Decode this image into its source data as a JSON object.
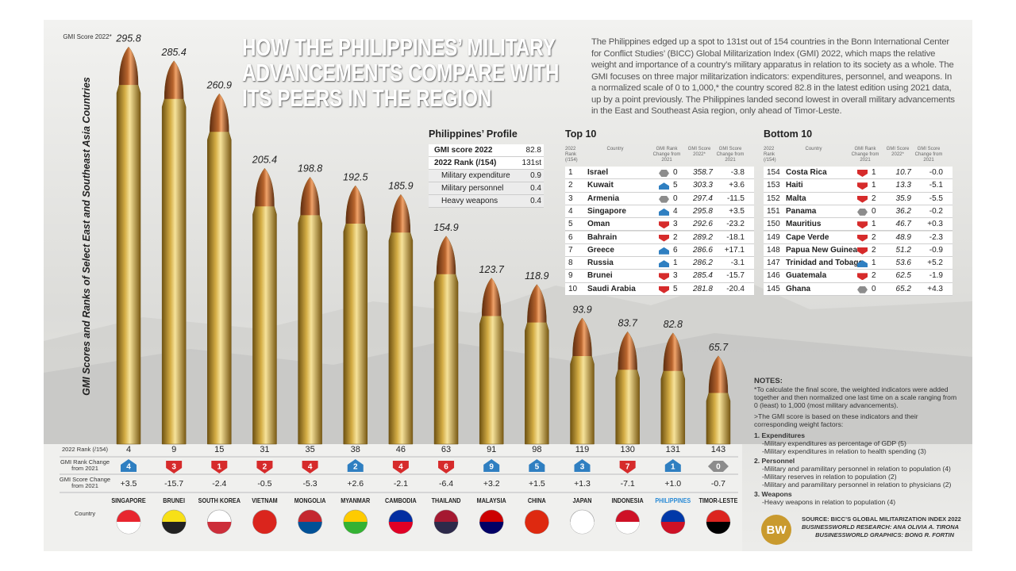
{
  "header": {
    "title": "HOW THE PHILIPPINES’ MILITARY ADVANCEMENTS COMPARE WITH ITS PEERS IN THE REGION",
    "intro": "The Philippines edged up a spot to 131st out of 154 countries in the Bonn International Center for Conflict Studies’ (BICC) Global Militarization Index (GMI) 2022, which maps the relative weight and importance of a country’s military apparatus in relation to its society as a whole. The GMI focuses on three major militarization indicators: expenditures, personnel, and weapons. In a normalized scale of 0 to 1,000,* the country scored 82.8 in the latest edition using 2021 data, up by a point previously. The Philippines landed second lowest in overall military advancements in the East and Southeast Asia region, only ahead of Timor-Leste."
  },
  "chart_data": {
    "type": "bar",
    "ylabel": "GMI Scores and Ranks of Select East and Southeast Asia Countries",
    "value_caption": "GMI Score 2022*",
    "row_labels": {
      "rank": "2022 Rank (/154)",
      "rank_change": "GMI Rank Change from 2021",
      "score_change": "GMI Score Change from 2021",
      "country": "Country"
    },
    "categories": [
      "SINGAPORE",
      "BRUNEI",
      "SOUTH KOREA",
      "VIETNAM",
      "MONGOLIA",
      "MYANMAR",
      "CAMBODIA",
      "THAILAND",
      "MALAYSIA",
      "CHINA",
      "JAPAN",
      "INDONESIA",
      "PHILIPPINES",
      "TIMOR-LESTE"
    ],
    "values": [
      295.8,
      285.4,
      260.9,
      205.4,
      198.8,
      192.5,
      185.9,
      154.9,
      123.7,
      118.9,
      93.9,
      83.7,
      82.8,
      65.7
    ],
    "ylim": [
      0,
      300
    ],
    "color": "#d4ad45",
    "tip_color": "#b8652e",
    "highlight_index": 12,
    "highlight_color": "#2a8bd6",
    "ranks": [
      4,
      9,
      15,
      31,
      35,
      38,
      46,
      63,
      91,
      98,
      119,
      130,
      131,
      143
    ],
    "rank_change": [
      4,
      3,
      1,
      2,
      4,
      2,
      4,
      6,
      9,
      5,
      3,
      7,
      1,
      0
    ],
    "rank_change_direction": [
      "up",
      "down",
      "down",
      "down",
      "down",
      "up",
      "down",
      "down",
      "up",
      "up",
      "up",
      "down",
      "up",
      "same"
    ],
    "score_change": [
      "+3.5",
      "-15.7",
      "-2.4",
      "-0.5",
      "-5.3",
      "+2.6",
      "-2.1",
      "-6.4",
      "+3.2",
      "+1.5",
      "+1.3",
      "-7.1",
      "+1.0",
      "-0.7"
    ],
    "direction_colors": {
      "up": "#2f7fc1",
      "down": "#d62b2b",
      "same": "#8c8c8c"
    }
  },
  "profile": {
    "title": "Philippines’ Profile",
    "rows": [
      [
        "GMI score 2022",
        82.8
      ],
      [
        "2022 Rank (/154)",
        "131st"
      ],
      [
        "Military expenditure",
        0.9
      ],
      [
        "Military personnel",
        0.4
      ],
      [
        "Heavy weapons",
        0.4
      ]
    ]
  },
  "top10": {
    "title": "Top 10",
    "columns": [
      "2022 Rank (/154)",
      "Country",
      "GMI Rank Change from 2021",
      "GMI Score 2022*",
      "GMI Score Change from 2021"
    ],
    "rows": [
      [
        1,
        "Israel",
        "same",
        0,
        358.7,
        "-3.8"
      ],
      [
        2,
        "Kuwait",
        "up",
        5,
        303.3,
        "+3.6"
      ],
      [
        3,
        "Armenia",
        "same",
        0,
        297.4,
        "-11.5"
      ],
      [
        4,
        "Singapore",
        "up",
        4,
        295.8,
        "+3.5"
      ],
      [
        5,
        "Oman",
        "down",
        3,
        292.6,
        "-23.2"
      ],
      [
        6,
        "Bahrain",
        "down",
        2,
        289.2,
        "-18.1"
      ],
      [
        7,
        "Greece",
        "up",
        6,
        286.6,
        "+17.1"
      ],
      [
        8,
        "Russia",
        "up",
        1,
        286.2,
        "-3.1"
      ],
      [
        9,
        "Brunei",
        "down",
        3,
        285.4,
        "-15.7"
      ],
      [
        10,
        "Saudi Arabia",
        "down",
        5,
        281.8,
        "-20.4"
      ]
    ]
  },
  "bottom10": {
    "title": "Bottom 10",
    "columns": [
      "2022 Rank (/154)",
      "Country",
      "GMI Rank Change from 2021",
      "GMI Score 2022*",
      "GMI Score Change from 2021"
    ],
    "rows": [
      [
        154,
        "Costa Rica",
        "down",
        1,
        10.7,
        "-0.0"
      ],
      [
        153,
        "Haiti",
        "down",
        1,
        13.3,
        "-5.1"
      ],
      [
        152,
        "Malta",
        "down",
        2,
        35.9,
        "-5.5"
      ],
      [
        151,
        "Panama",
        "same",
        0,
        36.2,
        "-0.2"
      ],
      [
        150,
        "Mauritius",
        "down",
        1,
        46.7,
        "+0.3"
      ],
      [
        149,
        "Cape Verde",
        "down",
        2,
        48.9,
        "-2.3"
      ],
      [
        148,
        "Papua New Guinea",
        "down",
        2,
        51.2,
        "-0.9"
      ],
      [
        147,
        "Trinidad and Tobago",
        "up",
        1,
        53.6,
        "+5.2"
      ],
      [
        146,
        "Guatemala",
        "down",
        2,
        62.5,
        "-1.9"
      ],
      [
        145,
        "Ghana",
        "same",
        0,
        65.2,
        "+4.3"
      ]
    ]
  },
  "notes": {
    "title": "NOTES:",
    "paragraphs": [
      "*To calculate the final score, the weighted indicators were added together and then normalized one last time on a scale ranging from 0 (least) to 1,000 (most military advancements).",
      ">The GMI score is based on these indicators and their corresponding weight factors:"
    ],
    "groups": [
      {
        "heading": "1. Expenditures",
        "items": [
          "-Military expenditures as percentage of GDP (5)",
          "-Military expenditures in relation to health spending (3)"
        ]
      },
      {
        "heading": "2. Personnel",
        "items": [
          "-Military and paramilitary personnel in relation to population (4)",
          "-Military reserves in relation to population (2)",
          "-Military and paramilitary personnel in relation to physicians (2)"
        ]
      },
      {
        "heading": "3. Weapons",
        "items": [
          "-Heavy weapons in relation to population (4)"
        ]
      }
    ]
  },
  "source": [
    "SOURCE: BICC’S GLOBAL MILITARIZATION INDEX 2022",
    "BUSINESSWORLD RESEARCH: ANA OLIVIA A. TIRONA",
    "BUSINESSWORLD GRAPHICS: BONG R. FORTIN"
  ],
  "logo": "BW"
}
